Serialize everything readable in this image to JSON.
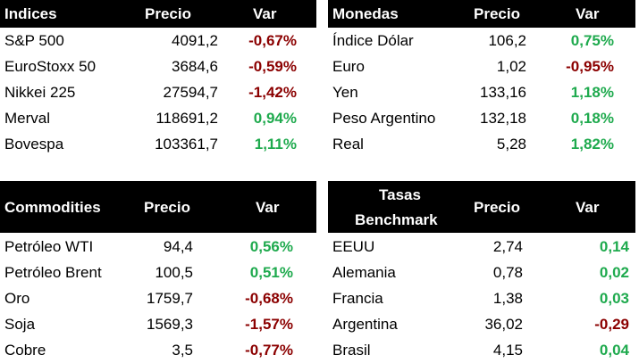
{
  "tables": [
    {
      "headers": [
        "Indices",
        "Precio",
        "Var"
      ],
      "rows": [
        {
          "name": "S&P 500",
          "precio": "4091,2",
          "var": "-0,67%",
          "trend": "neg"
        },
        {
          "name": "EuroStoxx 50",
          "precio": "3684,6",
          "var": "-0,59%",
          "trend": "neg"
        },
        {
          "name": "Nikkei 225",
          "precio": "27594,7",
          "var": "-1,42%",
          "trend": "neg"
        },
        {
          "name": "Merval",
          "precio": "118691,2",
          "var": "0,94%",
          "trend": "pos"
        },
        {
          "name": "Bovespa",
          "precio": "103361,7",
          "var": "1,11%",
          "trend": "pos"
        }
      ]
    },
    {
      "headers": [
        "Monedas",
        "Precio",
        "Var"
      ],
      "rows": [
        {
          "name": "Índice Dólar",
          "precio": "106,2",
          "var": "0,75%",
          "trend": "pos"
        },
        {
          "name": "Euro",
          "precio": "1,02",
          "var": "-0,95%",
          "trend": "neg"
        },
        {
          "name": "Yen",
          "precio": "133,16",
          "var": "1,18%",
          "trend": "pos"
        },
        {
          "name": "Peso Argentino",
          "precio": "132,18",
          "var": "0,18%",
          "trend": "pos"
        },
        {
          "name": "Real",
          "precio": "5,28",
          "var": "1,82%",
          "trend": "pos"
        }
      ]
    },
    {
      "headers": [
        "Commodities",
        "Precio",
        "Var"
      ],
      "rows": [
        {
          "name": "Petróleo WTI",
          "precio": "94,4",
          "var": "0,56%",
          "trend": "pos"
        },
        {
          "name": "Petróleo Brent",
          "precio": "100,5",
          "var": "0,51%",
          "trend": "pos"
        },
        {
          "name": "Oro",
          "precio": "1759,7",
          "var": "-0,68%",
          "trend": "neg"
        },
        {
          "name": "Soja",
          "precio": "1569,3",
          "var": "-1,57%",
          "trend": "neg"
        },
        {
          "name": "Cobre",
          "precio": "3,5",
          "var": "-0,77%",
          "trend": "neg"
        }
      ]
    },
    {
      "headers": [
        "Tasas Benchmark",
        "Precio",
        "Var"
      ],
      "header_lines": [
        "Tasas",
        "Benchmark"
      ],
      "rows": [
        {
          "name": "EEUU",
          "precio": "2,74",
          "var": "0,14",
          "trend": "pos"
        },
        {
          "name": "Alemania",
          "precio": "0,78",
          "var": "0,02",
          "trend": "pos"
        },
        {
          "name": "Francia",
          "precio": "1,38",
          "var": "0,03",
          "trend": "pos"
        },
        {
          "name": "Argentina",
          "precio": "36,02",
          "var": "-0,29",
          "trend": "neg"
        },
        {
          "name": "Brasil",
          "precio": "4,15",
          "var": "0,04",
          "trend": "pos"
        }
      ]
    }
  ],
  "colors": {
    "positive": "#1faa4e",
    "negative": "#8b0000",
    "header_bg": "#000000"
  }
}
